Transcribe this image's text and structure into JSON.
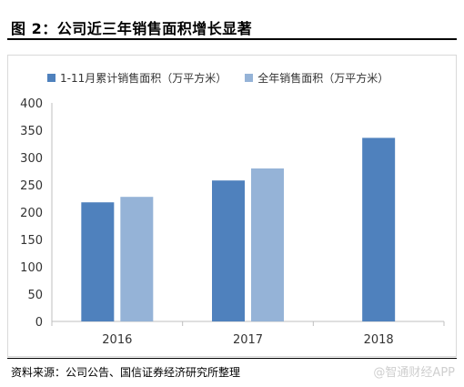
{
  "header": {
    "title": "图 2：公司近三年销售面积增长显著"
  },
  "colors": {
    "series_1": "#4f81bd",
    "series_2": "#95b3d7",
    "axis": "#bfbfbf"
  },
  "chart_data": {
    "type": "bar",
    "categories": [
      "2016",
      "2017",
      "2018"
    ],
    "series": [
      {
        "name": "1-11月累计销售面积（万平方米）",
        "values": [
          218,
          258,
          336
        ]
      },
      {
        "name": "全年销售面积（万平方米）",
        "values": [
          228,
          280,
          null
        ]
      }
    ],
    "ylim": [
      0,
      400
    ],
    "yticks": [
      "0",
      "50",
      "100",
      "150",
      "200",
      "250",
      "300",
      "350",
      "400"
    ],
    "legend_position": "top-left",
    "grid": false
  },
  "footer": {
    "source": "资料来源：公司公告、国信证券经济研究所整理",
    "watermark": "@智通财经APP"
  }
}
